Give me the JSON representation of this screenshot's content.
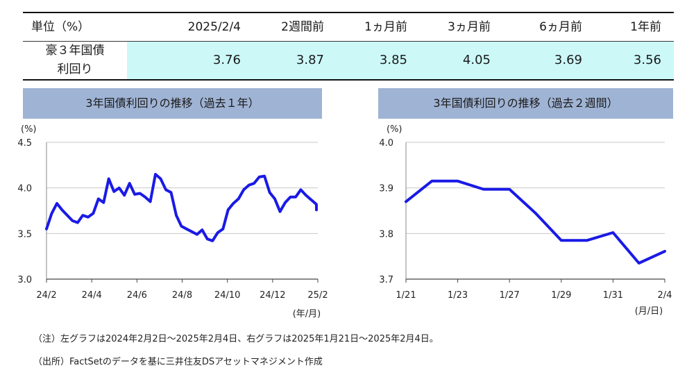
{
  "table": {
    "unit_header": "単位（%）",
    "columns": [
      "2025/2/4",
      "2週間前",
      "1ヵ月前",
      "3ヵ月前",
      "6ヵ月前",
      "1年前"
    ],
    "row_label_line1": "豪３年国債",
    "row_label_line2": "利回り",
    "values": [
      "3.76",
      "3.87",
      "3.85",
      "4.05",
      "3.69",
      "3.56"
    ],
    "highlight_color": "#ccf8f8"
  },
  "chart_data": [
    {
      "type": "line",
      "title": "3年国債利回りの推移（過去１年）",
      "yunit": "(%)",
      "xunit": "(年/月)",
      "ylim": [
        3.0,
        4.5
      ],
      "yticks": [
        "4.5",
        "4.0",
        "3.5",
        "3.0"
      ],
      "xticks": [
        "24/2",
        "24/4",
        "24/6",
        "24/8",
        "24/10",
        "24/12",
        "25/2"
      ],
      "grid": true,
      "color": "#1a1ae6",
      "x": [
        "2024-02-02",
        "2024-02-09",
        "2024-02-16",
        "2024-02-23",
        "2024-03-01",
        "2024-03-08",
        "2024-03-15",
        "2024-03-22",
        "2024-03-29",
        "2024-04-05",
        "2024-04-12",
        "2024-04-19",
        "2024-04-26",
        "2024-05-03",
        "2024-05-10",
        "2024-05-17",
        "2024-05-24",
        "2024-05-31",
        "2024-06-07",
        "2024-06-14",
        "2024-06-21",
        "2024-06-28",
        "2024-07-05",
        "2024-07-12",
        "2024-07-19",
        "2024-07-26",
        "2024-08-02",
        "2024-08-09",
        "2024-08-16",
        "2024-08-23",
        "2024-08-30",
        "2024-09-06",
        "2024-09-13",
        "2024-09-20",
        "2024-09-27",
        "2024-10-04",
        "2024-10-11",
        "2024-10-18",
        "2024-10-25",
        "2024-11-01",
        "2024-11-08",
        "2024-11-15",
        "2024-11-22",
        "2024-11-29",
        "2024-12-06",
        "2024-12-13",
        "2024-12-20",
        "2024-12-27",
        "2025-01-03",
        "2025-01-10",
        "2025-01-17",
        "2025-01-24",
        "2025-01-31",
        "2025-02-04"
      ],
      "values": [
        3.55,
        3.72,
        3.83,
        3.76,
        3.7,
        3.64,
        3.62,
        3.7,
        3.68,
        3.72,
        3.88,
        3.84,
        4.1,
        3.96,
        4.0,
        3.92,
        4.05,
        3.93,
        3.94,
        3.9,
        3.85,
        4.15,
        4.1,
        3.98,
        3.95,
        3.7,
        3.58,
        3.55,
        3.52,
        3.49,
        3.54,
        3.44,
        3.42,
        3.51,
        3.55,
        3.76,
        3.83,
        3.88,
        3.98,
        4.03,
        4.05,
        4.12,
        4.13,
        3.95,
        3.88,
        3.74,
        3.84,
        3.9,
        3.9,
        3.98,
        3.92,
        3.87,
        3.82,
        3.76
      ]
    },
    {
      "type": "line",
      "title": "3年国債利回りの推移（過去２週間）",
      "yunit": "(%)",
      "xunit": "(月/日)",
      "ylim": [
        3.7,
        4.0
      ],
      "yticks": [
        "4.0",
        "3.9",
        "3.8",
        "3.7"
      ],
      "xticks": [
        "1/21",
        "1/23",
        "1/27",
        "1/29",
        "1/31",
        "2/4"
      ],
      "grid": true,
      "color": "#1a1ae6",
      "x": [
        "1/21",
        "1/22",
        "1/23",
        "1/24",
        "1/27",
        "1/28",
        "1/29",
        "1/30",
        "1/31",
        "2/3",
        "2/4"
      ],
      "values": [
        3.87,
        3.915,
        3.915,
        3.897,
        3.897,
        3.845,
        3.785,
        3.785,
        3.802,
        3.735,
        3.761
      ]
    }
  ],
  "notes": {
    "note": "（注）左グラフは2024年2月2日～2025年2月4日、右グラフは2025年1月21日～2025年2月4日。",
    "source": "（出所）FactSetのデータを基に三井住友DSアセットマネジメント作成"
  }
}
